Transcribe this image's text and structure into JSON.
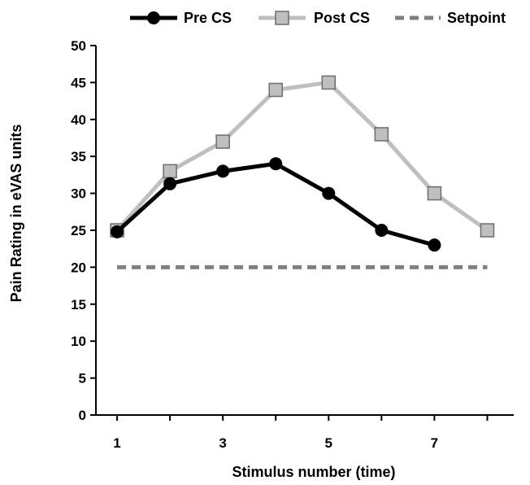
{
  "chart_data": {
    "type": "line",
    "xlabel": "Stimulus number (time)",
    "ylabel": "Pain Rating in eVAS units",
    "x": [
      1,
      2,
      3,
      4,
      5,
      6,
      7,
      8
    ],
    "xticks": [
      "1",
      "3",
      "5",
      "7"
    ],
    "xtick_values": [
      1,
      3,
      5,
      7
    ],
    "ylim": [
      0,
      50
    ],
    "yticks": [
      "0",
      "5",
      "10",
      "15",
      "20",
      "25",
      "30",
      "35",
      "40",
      "45",
      "50"
    ],
    "ytick_values": [
      0,
      5,
      10,
      15,
      20,
      25,
      30,
      35,
      40,
      45,
      50
    ],
    "grid": false,
    "legend_position": "top",
    "series": [
      {
        "name": "Pre CS",
        "x": [
          1,
          2,
          3,
          4,
          5,
          6,
          7
        ],
        "values": [
          24.8,
          31.3,
          33,
          34,
          30,
          25,
          23
        ],
        "color": "#000000",
        "marker": "circle",
        "line_style": "solid"
      },
      {
        "name": "Post CS",
        "x": [
          1,
          2,
          3,
          4,
          5,
          6,
          7,
          8
        ],
        "values": [
          25,
          33,
          37,
          44,
          45,
          38,
          30,
          25
        ],
        "color": "#bfbfbf",
        "marker_fill": "#bfbfbf",
        "marker_stroke": "#6d6d6d",
        "marker": "square",
        "line_style": "solid"
      },
      {
        "name": "Setpoint",
        "x": [
          1,
          8
        ],
        "values": [
          20,
          20
        ],
        "color": "#7f7f7f",
        "marker": "none",
        "line_style": "dashed"
      }
    ]
  }
}
